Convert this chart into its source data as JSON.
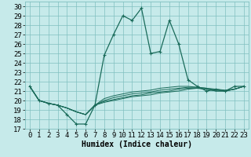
{
  "title": "",
  "xlabel": "Humidex (Indice chaleur)",
  "background_color": "#c6eaea",
  "grid_color": "#80c0c0",
  "line_color": "#1a6b5a",
  "xlim": [
    -0.5,
    23.5
  ],
  "ylim": [
    17,
    30.5
  ],
  "yticks": [
    17,
    18,
    19,
    20,
    21,
    22,
    23,
    24,
    25,
    26,
    27,
    28,
    29,
    30
  ],
  "xticks": [
    0,
    1,
    2,
    3,
    4,
    5,
    6,
    7,
    8,
    9,
    10,
    11,
    12,
    13,
    14,
    15,
    16,
    17,
    18,
    19,
    20,
    21,
    22,
    23
  ],
  "series": [
    [
      21.5,
      20.0,
      19.7,
      19.5,
      18.5,
      17.5,
      17.5,
      19.5,
      24.8,
      27.0,
      29.0,
      28.5,
      29.8,
      25.0,
      25.2,
      28.5,
      26.0,
      22.2,
      21.5,
      21.0,
      21.2,
      21.0,
      21.5,
      21.5
    ],
    [
      21.5,
      20.0,
      19.7,
      19.5,
      19.2,
      18.8,
      18.5,
      19.5,
      20.2,
      20.5,
      20.7,
      20.9,
      21.0,
      21.1,
      21.3,
      21.4,
      21.5,
      21.5,
      21.4,
      21.3,
      21.2,
      21.1,
      21.2,
      21.5
    ],
    [
      21.5,
      20.0,
      19.7,
      19.5,
      19.2,
      18.8,
      18.5,
      19.5,
      20.0,
      20.3,
      20.5,
      20.7,
      20.8,
      20.9,
      21.1,
      21.2,
      21.3,
      21.4,
      21.4,
      21.3,
      21.1,
      21.0,
      21.2,
      21.5
    ],
    [
      21.5,
      20.0,
      19.7,
      19.5,
      19.2,
      18.8,
      18.5,
      19.5,
      19.9,
      20.1,
      20.3,
      20.5,
      20.6,
      20.8,
      20.9,
      21.0,
      21.2,
      21.3,
      21.3,
      21.2,
      21.0,
      21.0,
      21.2,
      21.5
    ],
    [
      21.5,
      20.0,
      19.7,
      19.5,
      19.2,
      18.8,
      18.5,
      19.5,
      19.8,
      20.0,
      20.2,
      20.4,
      20.5,
      20.6,
      20.8,
      20.9,
      21.0,
      21.2,
      21.3,
      21.2,
      21.0,
      21.0,
      21.2,
      21.5
    ]
  ],
  "font_size_label": 7,
  "font_size_tick": 6.5
}
